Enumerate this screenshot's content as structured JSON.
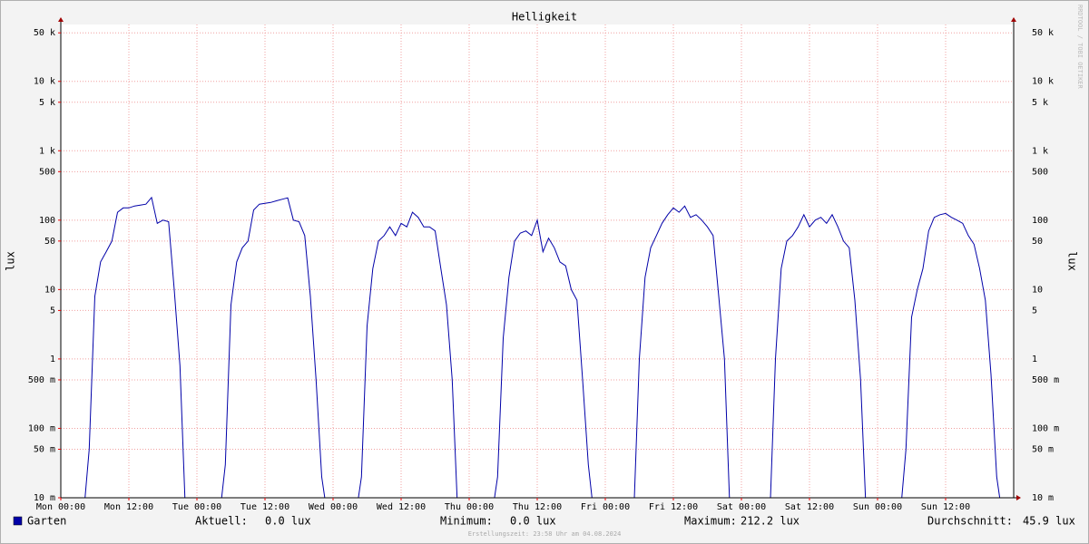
{
  "chart_data": {
    "type": "line",
    "title": "Helligkeit",
    "y_label": "lux",
    "log_scale": true,
    "grid": true,
    "watermark": "RRDTOOL / TOBI OETIKER",
    "footer": "Erstellungszeit: 23:58 Uhr am 04.08.2024",
    "xlim": [
      0,
      168
    ],
    "xticks": [
      {
        "value": 0,
        "label": "Mon 00:00"
      },
      {
        "value": 12,
        "label": "Mon 12:00"
      },
      {
        "value": 24,
        "label": "Tue 00:00"
      },
      {
        "value": 36,
        "label": "Tue 12:00"
      },
      {
        "value": 48,
        "label": "Wed 00:00"
      },
      {
        "value": 60,
        "label": "Wed 12:00"
      },
      {
        "value": 72,
        "label": "Thu 00:00"
      },
      {
        "value": 84,
        "label": "Thu 12:00"
      },
      {
        "value": 96,
        "label": "Fri 00:00"
      },
      {
        "value": 108,
        "label": "Fri 12:00"
      },
      {
        "value": 120,
        "label": "Sat 00:00"
      },
      {
        "value": 132,
        "label": "Sat 12:00"
      },
      {
        "value": 144,
        "label": "Sun 00:00"
      },
      {
        "value": 156,
        "label": "Sun 12:00"
      }
    ],
    "ylim": [
      0.01,
      66000
    ],
    "yticks": [
      {
        "value": 50000,
        "label": "50 k"
      },
      {
        "value": 10000,
        "label": "10 k"
      },
      {
        "value": 5000,
        "label": "5 k"
      },
      {
        "value": 1000,
        "label": "1 k"
      },
      500,
      100,
      50,
      10,
      5,
      1,
      {
        "value": 0.5,
        "label": "500 m"
      },
      {
        "value": 0.1,
        "label": "100 m"
      },
      {
        "value": 0.05,
        "label": "50 m"
      },
      {
        "value": 0.01,
        "label": "10 m"
      }
    ],
    "x": [
      0,
      1,
      2,
      3,
      4,
      5,
      6,
      7,
      8,
      9,
      10,
      11,
      12,
      13,
      14,
      15,
      16,
      17,
      18,
      19,
      20,
      21,
      22,
      23,
      24,
      25,
      26,
      27,
      28,
      29,
      30,
      31,
      32,
      33,
      34,
      35,
      36,
      37,
      38,
      39,
      40,
      41,
      42,
      43,
      44,
      45,
      46,
      47,
      48,
      49,
      50,
      51,
      52,
      53,
      54,
      55,
      56,
      57,
      58,
      59,
      60,
      61,
      62,
      63,
      64,
      65,
      66,
      67,
      68,
      69,
      70,
      71,
      72,
      73,
      74,
      75,
      76,
      77,
      78,
      79,
      80,
      81,
      82,
      83,
      84,
      85,
      86,
      87,
      88,
      89,
      90,
      91,
      92,
      93,
      94,
      95,
      96,
      97,
      98,
      99,
      100,
      101,
      102,
      103,
      104,
      105,
      106,
      107,
      108,
      109,
      110,
      111,
      112,
      113,
      114,
      115,
      116,
      117,
      118,
      119,
      120,
      121,
      122,
      123,
      124,
      125,
      126,
      127,
      128,
      129,
      130,
      131,
      132,
      133,
      134,
      135,
      136,
      137,
      138,
      139,
      140,
      141,
      142,
      143,
      144,
      145,
      146,
      147,
      148,
      149,
      150,
      151,
      152,
      153,
      154,
      155,
      156,
      157,
      158,
      159,
      160,
      161,
      162,
      163,
      164,
      165,
      166,
      167,
      168
    ],
    "series": [
      {
        "name": "Garten",
        "color": "#0000a8",
        "values": [
          0,
          0,
          0,
          0,
          0,
          0.05,
          8,
          25,
          35,
          50,
          130,
          150,
          150,
          160,
          165,
          170,
          212,
          90,
          100,
          95,
          10,
          0.8,
          0,
          0,
          0,
          0,
          0,
          0,
          0,
          0.03,
          6,
          25,
          40,
          50,
          140,
          170,
          175,
          180,
          190,
          200,
          210,
          100,
          95,
          60,
          8,
          0.5,
          0.02,
          0,
          0,
          0,
          0,
          0,
          0,
          0.02,
          3,
          20,
          50,
          60,
          80,
          60,
          90,
          80,
          130,
          110,
          80,
          80,
          70,
          20,
          6,
          0.5,
          0,
          0,
          0,
          0,
          0,
          0,
          0,
          0.02,
          2,
          15,
          50,
          65,
          70,
          60,
          100,
          35,
          55,
          40,
          25,
          22,
          10,
          7,
          0.5,
          0.03,
          0,
          0,
          0,
          0,
          0,
          0,
          0,
          0,
          1,
          15,
          40,
          60,
          90,
          120,
          150,
          130,
          160,
          110,
          120,
          100,
          80,
          60,
          8,
          1,
          0,
          0,
          0,
          0,
          0,
          0,
          0,
          0,
          1,
          20,
          50,
          60,
          80,
          120,
          80,
          100,
          110,
          90,
          120,
          80,
          50,
          40,
          7,
          0.5,
          0,
          0,
          0,
          0,
          0,
          0,
          0,
          0.05,
          4,
          10,
          20,
          70,
          110,
          120,
          125,
          110,
          100,
          90,
          60,
          45,
          20,
          7,
          0.6,
          0.02,
          0,
          0,
          0
        ]
      }
    ],
    "stats": [
      {
        "label": "Aktuell:",
        "value": "0.0 lux"
      },
      {
        "label": "Minimum:",
        "value": "0.0 lux"
      },
      {
        "label": "Maximum:",
        "value": "212.2 lux"
      },
      {
        "label": "Durchschnitt:",
        "value": "45.9 lux"
      }
    ]
  }
}
